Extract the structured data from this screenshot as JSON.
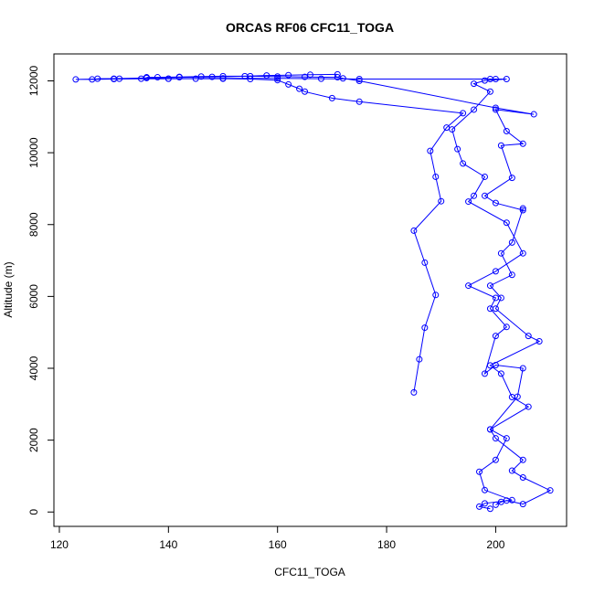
{
  "chart_data": {
    "type": "line",
    "title": "ORCAS RF06 CFC11_TOGA",
    "xlabel": "CFC11_TOGA",
    "ylabel": "Altitude (m)",
    "xlim": [
      119,
      213
    ],
    "ylim": [
      -400,
      12750
    ],
    "xticks": [
      120,
      140,
      160,
      180,
      200
    ],
    "yticks": [
      0,
      2000,
      4000,
      6000,
      8000,
      10000,
      12000
    ],
    "grid": false,
    "line_color": "#0000ff",
    "marker": "open-circle",
    "series": [
      {
        "x": [
          185,
          186,
          187,
          189,
          187,
          185,
          190,
          189,
          188,
          191,
          194,
          175,
          170,
          165,
          164,
          162,
          160,
          155,
          150,
          145,
          140,
          135,
          130,
          126,
          123,
          130,
          136,
          142,
          148,
          154,
          158,
          162,
          166,
          171
        ],
        "y": [
          3330,
          4250,
          5130,
          6040,
          6940,
          7830,
          8650,
          9330,
          10050,
          10700,
          11100,
          11420,
          11520,
          11700,
          11780,
          11900,
          12020,
          12050,
          12060,
          12060,
          12060,
          12060,
          12050,
          12040,
          12040,
          12060,
          12080,
          12100,
          12110,
          12130,
          12150,
          12160,
          12170,
          12180
        ]
      },
      {
        "x": [
          199,
          197,
          198,
          203,
          198,
          197,
          200,
          202,
          199,
          204,
          205,
          200,
          198,
          200,
          202,
          199,
          200,
          195,
          200,
          205,
          202,
          195,
          196,
          198,
          194,
          193,
          192,
          196,
          199,
          196,
          198,
          202,
          199,
          200,
          175,
          168,
          160,
          150,
          140,
          131,
          127
        ],
        "y": [
          90,
          150,
          240,
          330,
          610,
          1120,
          1450,
          2050,
          2300,
          3210,
          4000,
          4090,
          3850,
          4900,
          5150,
          5660,
          5960,
          6300,
          6700,
          7200,
          8050,
          8640,
          8800,
          9330,
          9700,
          10100,
          10650,
          11200,
          11700,
          11920,
          12010,
          12050,
          12050,
          12050,
          12050,
          12060,
          12070,
          12070,
          12060,
          12060,
          12060
        ]
      },
      {
        "x": [
          200,
          201,
          202,
          205,
          210,
          205,
          203,
          205,
          200,
          199,
          206,
          203,
          201,
          199,
          208,
          206,
          200,
          201,
          199,
          203,
          201,
          203,
          205,
          205,
          200,
          198,
          203,
          201,
          205,
          202,
          200,
          207,
          200,
          175,
          172,
          171,
          165,
          160,
          155,
          150,
          146,
          142,
          138,
          136
        ],
        "y": [
          200,
          280,
          320,
          220,
          600,
          960,
          1150,
          1450,
          2050,
          2300,
          2930,
          3200,
          3850,
          4080,
          4750,
          4900,
          5660,
          5960,
          6300,
          6600,
          7200,
          7500,
          8450,
          8400,
          8600,
          8800,
          9300,
          10200,
          10250,
          10600,
          11200,
          11070,
          11250,
          12000,
          12070,
          12100,
          12110,
          12120,
          12130,
          12130,
          12120,
          12110,
          12100,
          12100
        ]
      }
    ]
  }
}
